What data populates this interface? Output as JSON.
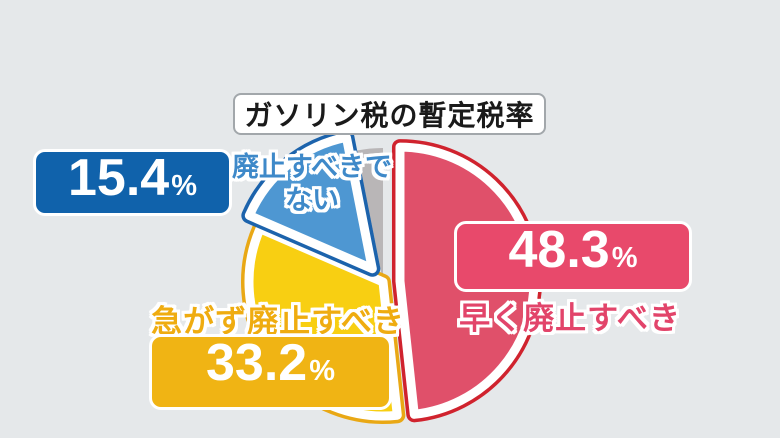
{
  "title": "ガソリン税の暫定税率",
  "background_color": "#e5e8ea",
  "chart_data": {
    "type": "pie",
    "title": "ガソリン税の暫定税率",
    "start_angle_deg": 0,
    "direction": "clockwise",
    "slices": [
      {
        "label": "早く廃止すべき",
        "value": 48.3,
        "fill": "#e0506a",
        "edge": "#d0232e",
        "exploded": true
      },
      {
        "label": "急がず廃止すべき",
        "value": 33.2,
        "fill": "#f8cf12",
        "edge": "#e9a815",
        "exploded": false
      },
      {
        "label": "廃止すべきでない",
        "value": 15.4,
        "fill": "#4e97d2",
        "edge": "#1c63ac",
        "exploded": true
      },
      {
        "label": "",
        "value": 3.1,
        "fill": "#b9b6b7",
        "edge": null,
        "exploded": false
      }
    ],
    "legend_position": "callouts-on-chart"
  },
  "callouts": {
    "red": {
      "value": "48.3",
      "unit": "%",
      "name": "早く廃止すべき",
      "box_color": "#e8496b",
      "text_color": "#e2446a"
    },
    "yellow": {
      "value": "33.2",
      "unit": "%",
      "name": "急がず廃止すべき",
      "box_color": "#f0b414",
      "text_color": "#efac10"
    },
    "blue": {
      "value": "15.4",
      "unit": "%",
      "name_lines": [
        "廃止すべきで",
        "ない"
      ],
      "box_color": "#1062ab",
      "text_color": "#3e89c9"
    }
  }
}
